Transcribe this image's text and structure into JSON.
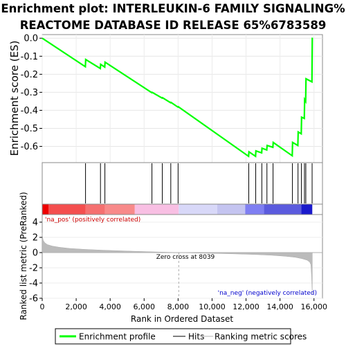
{
  "chart_data": {
    "type": "line",
    "title_lines": [
      "Enrichment plot: INTERLEUKIN-6 FAMILY SIGNALING%",
      "REACTOME DATABASE ID RELEASE 65%6783589"
    ],
    "es_panel": {
      "ylabel": "Enrichment score (ES)",
      "ylim": [
        -0.69,
        0.02
      ],
      "yticks": [
        0.0,
        -0.1,
        -0.2,
        -0.3,
        -0.4,
        -0.5,
        -0.6
      ],
      "ytick_labels": [
        "0.0",
        "-0.1",
        "-0.2",
        "-0.3",
        "-0.4",
        "-0.5",
        "-0.6"
      ],
      "series": [
        {
          "name": "Enrichment profile",
          "color": "#00ff00",
          "x": [
            0,
            2540,
            2560,
            3420,
            3440,
            3680,
            3700,
            6450,
            6470,
            7060,
            7080,
            7560,
            7580,
            7990,
            8010,
            12150,
            12170,
            12560,
            12580,
            12920,
            12940,
            13220,
            13240,
            13580,
            13600,
            14720,
            14740,
            15050,
            15070,
            15250,
            15270,
            15430,
            15450,
            15510,
            15530,
            15880,
            15900
          ],
          "y": [
            0.0,
            -0.158,
            -0.118,
            -0.168,
            -0.145,
            -0.16,
            -0.133,
            -0.302,
            -0.3,
            -0.332,
            -0.33,
            -0.358,
            -0.356,
            -0.382,
            -0.38,
            -0.655,
            -0.63,
            -0.655,
            -0.625,
            -0.636,
            -0.61,
            -0.62,
            -0.595,
            -0.605,
            -0.578,
            -0.652,
            -0.578,
            -0.595,
            -0.52,
            -0.53,
            -0.438,
            -0.445,
            -0.34,
            -0.35,
            -0.225,
            -0.242,
            0.003
          ]
        }
      ]
    },
    "hits": {
      "color": "#000000",
      "positions": [
        2550,
        3430,
        3690,
        6460,
        7070,
        7570,
        8000,
        12160,
        12570,
        12930,
        13230,
        13590,
        14730,
        15060,
        15260,
        15440,
        15520,
        15890
      ]
    },
    "rank_colorbar": {
      "segments": [
        {
          "from": 0,
          "to": 380,
          "color": "#ee0000"
        },
        {
          "from": 380,
          "to": 2560,
          "color": "#f44e4e"
        },
        {
          "from": 2560,
          "to": 3700,
          "color": "#f57070"
        },
        {
          "from": 3700,
          "to": 5450,
          "color": "#f88a8a"
        },
        {
          "from": 5450,
          "to": 8039,
          "color": "#f8bfe3"
        },
        {
          "from": 8039,
          "to": 10300,
          "color": "#d8d8f8"
        },
        {
          "from": 10300,
          "to": 11950,
          "color": "#c4c4f0"
        },
        {
          "from": 11950,
          "to": 13050,
          "color": "#7f7ff2"
        },
        {
          "from": 13050,
          "to": 15250,
          "color": "#5b5bde"
        },
        {
          "from": 15250,
          "to": 15900,
          "color": "#1a1acc"
        }
      ]
    },
    "metric_panel": {
      "ylabel": "Ranked list metric (PreRanked)",
      "ylim": [
        -6,
        5
      ],
      "yticks": [
        4,
        2,
        0,
        -2,
        -4,
        -6
      ],
      "ytick_labels": [
        "4",
        "2",
        "0",
        "-2",
        "-4",
        "-6"
      ],
      "zero_cross": 8039,
      "zero_cross_label": "Zero cross at 8039",
      "pos_label": "'na_pos' (positively correlated)",
      "neg_label": "'na_neg' (negatively correlated)",
      "metric_profile": {
        "x": [
          0,
          20,
          60,
          150,
          300,
          600,
          1000,
          1600,
          2500,
          3500,
          5000,
          6500,
          8039,
          9500,
          11000,
          12500,
          13500,
          14300,
          14900,
          15300,
          15600,
          15750,
          15820,
          15860,
          15900
        ],
        "y": [
          2.6,
          2.0,
          1.6,
          1.3,
          1.05,
          0.85,
          0.7,
          0.55,
          0.42,
          0.32,
          0.2,
          0.1,
          0.0,
          -0.08,
          -0.15,
          -0.25,
          -0.35,
          -0.48,
          -0.62,
          -0.8,
          -1.0,
          -1.25,
          -1.6,
          -3.2,
          -5.5
        ]
      },
      "color": "#bbbbbb"
    },
    "x_axis": {
      "label": "Rank in Ordered Dataset",
      "xlim": [
        0,
        16500
      ],
      "ticks": [
        0,
        2000,
        4000,
        6000,
        8000,
        10000,
        12000,
        14000,
        16000
      ],
      "tick_labels": [
        "0",
        "2,000",
        "4,000",
        "6,000",
        "8,000",
        "10,000",
        "12,000",
        "14,000",
        "16,000"
      ]
    },
    "legend": [
      {
        "label": "Enrichment profile",
        "color": "#00ff00",
        "kind": "thick-line"
      },
      {
        "label": "Hits",
        "color": "#555555",
        "kind": "thin-line"
      },
      {
        "label": "Ranking metric scores",
        "color": "#cccccc",
        "kind": "thin-line"
      }
    ]
  }
}
